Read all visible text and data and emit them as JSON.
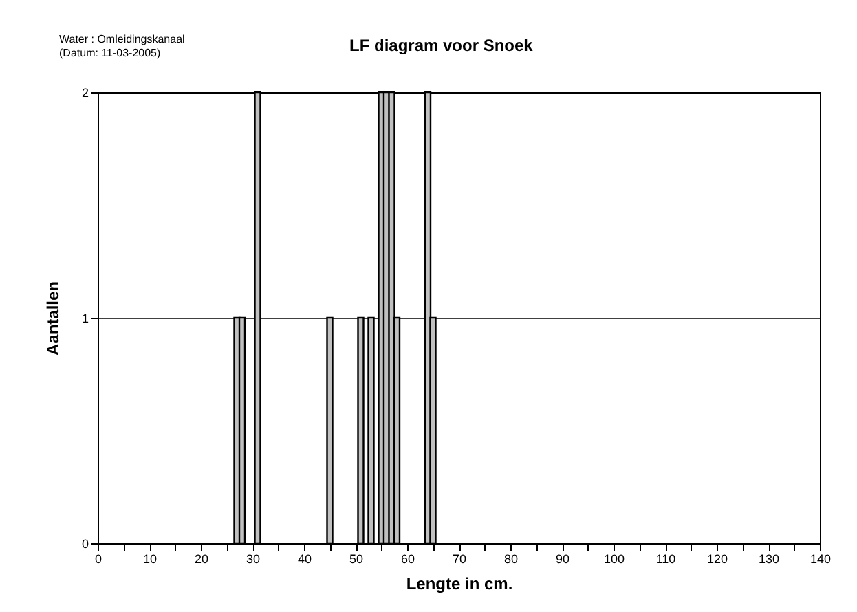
{
  "chart_data": {
    "type": "bar",
    "title": "LF diagram voor Snoek",
    "xlabel": "Lengte in cm.",
    "ylabel": "Aantallen",
    "annotations": [
      "Water     : Omleidingskanaal",
      "(Datum: 11-03-2005)"
    ],
    "x": [
      27,
      28,
      31,
      45,
      51,
      53,
      55,
      56,
      57,
      58,
      64,
      65
    ],
    "values": [
      1,
      1,
      2,
      1,
      1,
      1,
      2,
      2,
      2,
      1,
      2,
      1
    ],
    "color": "#c0c0c0",
    "xlim": [
      0,
      140
    ],
    "xticks": [
      0,
      {
        "value": 5,
        "label": null
      },
      10,
      {
        "value": 15,
        "label": null
      },
      20,
      {
        "value": 25,
        "label": null
      },
      30,
      {
        "value": 35,
        "label": null
      },
      40,
      {
        "value": 45,
        "label": null
      },
      50,
      {
        "value": 55,
        "label": null
      },
      60,
      {
        "value": 65,
        "label": null
      },
      70,
      {
        "value": 75,
        "label": null
      },
      80,
      {
        "value": 85,
        "label": null
      },
      90,
      {
        "value": 95,
        "label": null
      },
      100,
      {
        "value": 105,
        "label": null
      },
      110,
      {
        "value": 115,
        "label": null
      },
      120,
      {
        "value": 125,
        "label": null
      },
      130,
      {
        "value": 135,
        "label": null
      },
      140
    ],
    "ylim": [
      0,
      2
    ],
    "yticks": [
      0,
      1,
      2
    ],
    "grid": "y"
  }
}
